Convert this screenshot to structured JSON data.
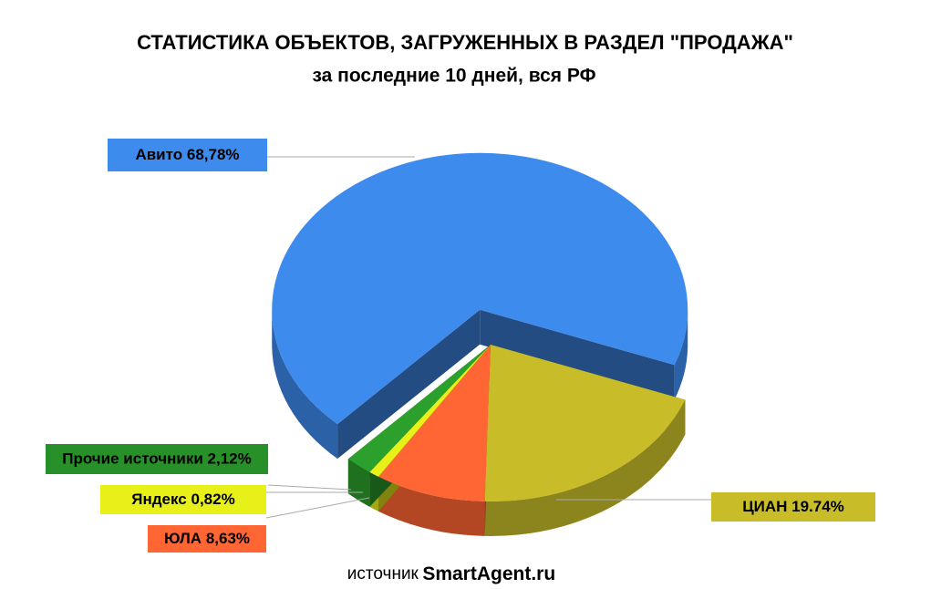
{
  "chart_data": {
    "type": "pie",
    "title": "СТАТИСТИКА ОБЪЕКТОВ, ЗАГРУЖЕННЫХ В РАЗДЕЛ \"ПРОДАЖА\"",
    "subtitle": "за последние 10 дней, вся РФ",
    "categories": [
      "ЦИАН",
      "ЮЛА",
      "Яндекс",
      "Прочие источники",
      "Авито"
    ],
    "values": [
      19.74,
      8.63,
      0.82,
      2.12,
      68.78
    ],
    "value_labels": [
      "19.74%",
      "8,63%",
      "0,82%",
      "2,12%",
      "68,78%"
    ],
    "colors": [
      "#c8bc28",
      "#ff6633",
      "#e8f019",
      "#2ca02c",
      "#3d8bed"
    ],
    "source_label": "источник",
    "source": "SmartAgent.ru"
  }
}
